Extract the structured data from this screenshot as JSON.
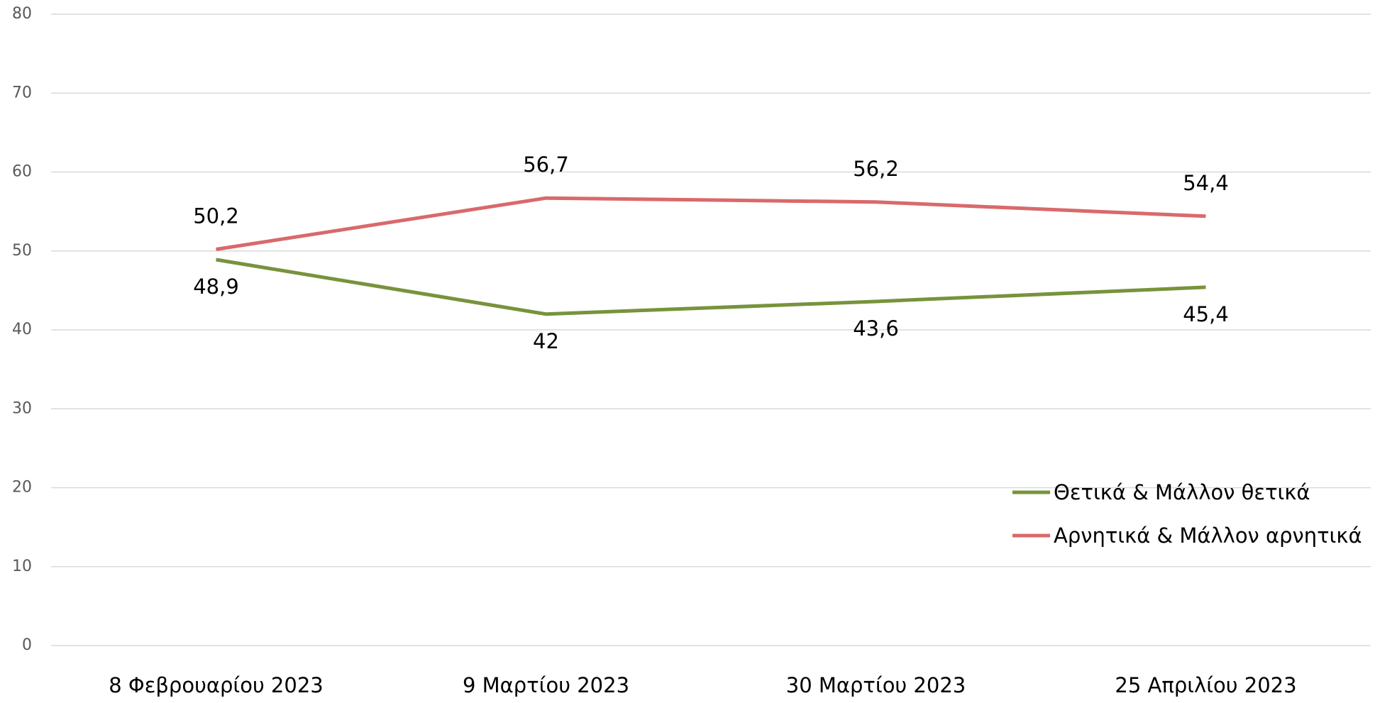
{
  "chart_data": {
    "type": "line",
    "categories": [
      "8 Φεβρουαρίου 2023",
      "9 Μαρτίου 2023",
      "30 Μαρτίου 2023",
      "25 Απριλίου 2023"
    ],
    "series": [
      {
        "name": "Θετικά & Μάλλον θετικά",
        "color": "#77933c",
        "values": [
          48.9,
          42,
          43.6,
          45.4
        ],
        "value_labels": [
          "48,9",
          "42",
          "43,6",
          "45,4"
        ],
        "label_side": "below"
      },
      {
        "name": "Αρνητικά & Μάλλον αρνητικά",
        "color": "#d9696b",
        "values": [
          50.2,
          56.7,
          56.2,
          54.4
        ],
        "value_labels": [
          "50,2",
          "56,7",
          "56,2",
          "54,4"
        ],
        "label_side": "above"
      }
    ],
    "ylim": [
      0,
      80
    ],
    "yticks": [
      0,
      10,
      20,
      30,
      40,
      50,
      60,
      70,
      80
    ],
    "grid": true,
    "legend": "lower right"
  }
}
